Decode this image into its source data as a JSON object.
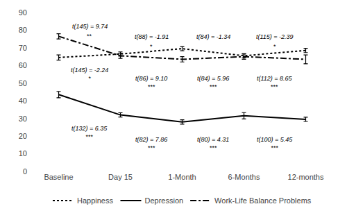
{
  "chart_data": {
    "type": "line",
    "categories": [
      "Baseline",
      "Day 15",
      "1-Month",
      "6-Months",
      "12-months"
    ],
    "series": [
      {
        "name": "Happiness",
        "color": "#000000",
        "line_style": "dotted",
        "values": [
          64.5,
          66.5,
          69.5,
          65.5,
          68.5
        ],
        "errors": [
          1.5,
          1.2,
          1.2,
          1.2,
          1.2
        ],
        "annotations": [
          {
            "x": 0.5,
            "y": 60.0,
            "text": "t(145) = -2.24",
            "stars": "*"
          },
          {
            "x": 1.5,
            "y": 55.5,
            "text": "t(86) = 9.10",
            "stars": "***"
          },
          {
            "x": 2.5,
            "y": 55.5,
            "text": "t(84) = 5.96",
            "stars": "***"
          },
          {
            "x": 3.5,
            "y": 55.5,
            "text": "t(112) = 8.65",
            "stars": "***"
          }
        ]
      },
      {
        "name": "Depression",
        "color": "#000000",
        "line_style": "solid",
        "values": [
          43.5,
          32.0,
          28.0,
          31.5,
          29.5
        ],
        "errors": [
          1.8,
          1.2,
          1.2,
          1.8,
          1.2
        ],
        "annotations": [
          {
            "x": 0.5,
            "y": 27.0,
            "text": "t(132) = 6.35",
            "stars": "***"
          },
          {
            "x": 1.5,
            "y": 21.0,
            "text": "t(82) = 7.86",
            "stars": "***"
          },
          {
            "x": 2.5,
            "y": 21.0,
            "text": "t(80) = 4.31",
            "stars": "***"
          },
          {
            "x": 3.5,
            "y": 21.0,
            "text": "t(100) = 5.45",
            "stars": "***"
          }
        ]
      },
      {
        "name": "Work-Life Balance Problems",
        "color": "#000000",
        "line_style": "dashdot",
        "values": [
          76.5,
          65.5,
          63.5,
          65.0,
          63.5
        ],
        "errors": [
          1.5,
          1.5,
          1.5,
          1.5,
          2.5
        ],
        "annotations": [
          {
            "x": 0.5,
            "y": 79.5,
            "text": "t(145) = 9.74",
            "stars": "**"
          },
          {
            "x": 1.5,
            "y": 73.5,
            "text": "t(88) = -1.91",
            "stars": "*"
          },
          {
            "x": 2.5,
            "y": 73.5,
            "text": "t(84) = -1.34"
          },
          {
            "x": 3.5,
            "y": 73.5,
            "text": "t(115) = -2.39",
            "stars": "*"
          }
        ]
      }
    ],
    "ylim": [
      0,
      90
    ],
    "yticks": [
      0,
      10,
      20,
      30,
      40,
      50,
      60,
      70,
      80,
      90
    ],
    "grid": false,
    "legend": "bottom"
  }
}
